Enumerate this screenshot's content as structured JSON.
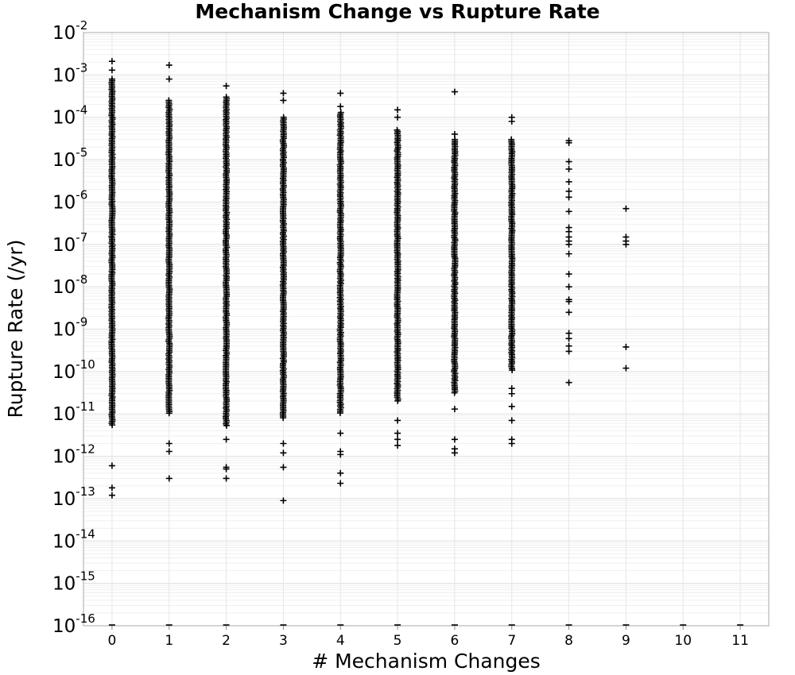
{
  "chart_data": {
    "type": "scatter",
    "title": "Mechanism Change vs Rupture Rate",
    "xlabel": "# Mechanism Changes",
    "ylabel": "Rupture Rate (/yr)",
    "x_ticks": [
      "0",
      "1",
      "2",
      "3",
      "4",
      "5",
      "6",
      "7",
      "8",
      "9",
      "10",
      "11"
    ],
    "xlim": [
      -0.5,
      11.5
    ],
    "y_scale": "log",
    "ylim": [
      1e-16,
      0.01
    ],
    "y_ticks": [
      {
        "base": "10",
        "exp": "-2",
        "value": 0.01
      },
      {
        "base": "10",
        "exp": "-3",
        "value": 0.001
      },
      {
        "base": "10",
        "exp": "-4",
        "value": 0.0001
      },
      {
        "base": "10",
        "exp": "-5",
        "value": 1e-05
      },
      {
        "base": "10",
        "exp": "-6",
        "value": 1e-06
      },
      {
        "base": "10",
        "exp": "-7",
        "value": 1e-07
      },
      {
        "base": "10",
        "exp": "-8",
        "value": 1e-08
      },
      {
        "base": "10",
        "exp": "-9",
        "value": 1e-09
      },
      {
        "base": "10",
        "exp": "-10",
        "value": 1e-10
      },
      {
        "base": "10",
        "exp": "-11",
        "value": 1e-11
      },
      {
        "base": "10",
        "exp": "-12",
        "value": 1e-12
      },
      {
        "base": "10",
        "exp": "-13",
        "value": 1e-13
      },
      {
        "base": "10",
        "exp": "-14",
        "value": 1e-14
      },
      {
        "base": "10",
        "exp": "-15",
        "value": 1e-15
      },
      {
        "base": "10",
        "exp": "-16",
        "value": 1e-16
      }
    ],
    "grid": true,
    "marker": "+",
    "marker_color": "#000000",
    "columns": [
      {
        "x": 0,
        "dense_range": [
          5e-12,
          0.0008
        ],
        "outliers": [
          0.0021,
          0.0013,
          6e-13,
          1.8e-13,
          1.2e-13
        ],
        "floor": true
      },
      {
        "x": 1,
        "dense_range": [
          1e-11,
          0.00025
        ],
        "outliers": [
          0.0017,
          0.0008,
          2e-12,
          1.3e-12,
          3e-13
        ],
        "floor": true
      },
      {
        "x": 2,
        "dense_range": [
          5e-12,
          0.0003
        ],
        "outliers": [
          0.00055,
          2.5e-12,
          5.5e-13,
          5e-13,
          3e-13
        ],
        "floor": true
      },
      {
        "x": 3,
        "dense_range": [
          8e-12,
          0.0001
        ],
        "outliers": [
          0.00037,
          0.00025,
          2e-12,
          1.2e-12,
          5.5e-13,
          9e-14
        ],
        "floor": true
      },
      {
        "x": 4,
        "dense_range": [
          1e-11,
          0.00013
        ],
        "outliers": [
          0.00037,
          0.00018,
          3.5e-12,
          1.3e-12,
          1.1e-12,
          4e-13,
          2.3e-13
        ],
        "floor": true
      },
      {
        "x": 5,
        "dense_range": [
          2e-11,
          5e-05
        ],
        "outliers": [
          0.00015,
          0.0001,
          7e-12,
          3.5e-12,
          2.5e-12,
          1.8e-12
        ],
        "floor": true
      },
      {
        "x": 6,
        "dense_range": [
          3e-11,
          3e-05
        ],
        "outliers": [
          0.0004,
          4e-05,
          1.3e-11,
          2.5e-12,
          1.5e-12,
          1.2e-12
        ],
        "floor": true
      },
      {
        "x": 7,
        "dense_range": [
          1e-10,
          3e-05
        ],
        "outliers": [
          0.0001,
          8e-05,
          4e-11,
          3e-11,
          1.5e-11,
          7e-12,
          2.5e-12,
          2e-12
        ],
        "floor": true
      },
      {
        "x": 8,
        "dense_range": null,
        "outliers": [
          2.8e-05,
          2.5e-05,
          9e-06,
          6e-06,
          3e-06,
          1.8e-06,
          1.3e-06,
          6e-07,
          2.5e-07,
          2e-07,
          1.5e-07,
          1.2e-07,
          1e-07,
          6e-08,
          2e-08,
          1e-08,
          5e-09,
          4.5e-09,
          2.5e-09,
          8e-10,
          6e-10,
          4e-10,
          3e-10,
          5.5e-11
        ],
        "floor": true
      },
      {
        "x": 9,
        "dense_range": null,
        "outliers": [
          7e-07,
          1.5e-07,
          1.2e-07,
          1e-07,
          3.8e-10,
          1.2e-10
        ],
        "floor": true
      },
      {
        "x": 10,
        "dense_range": null,
        "outliers": [],
        "floor": true
      },
      {
        "x": 11,
        "dense_range": null,
        "outliers": [],
        "floor": true
      }
    ]
  }
}
